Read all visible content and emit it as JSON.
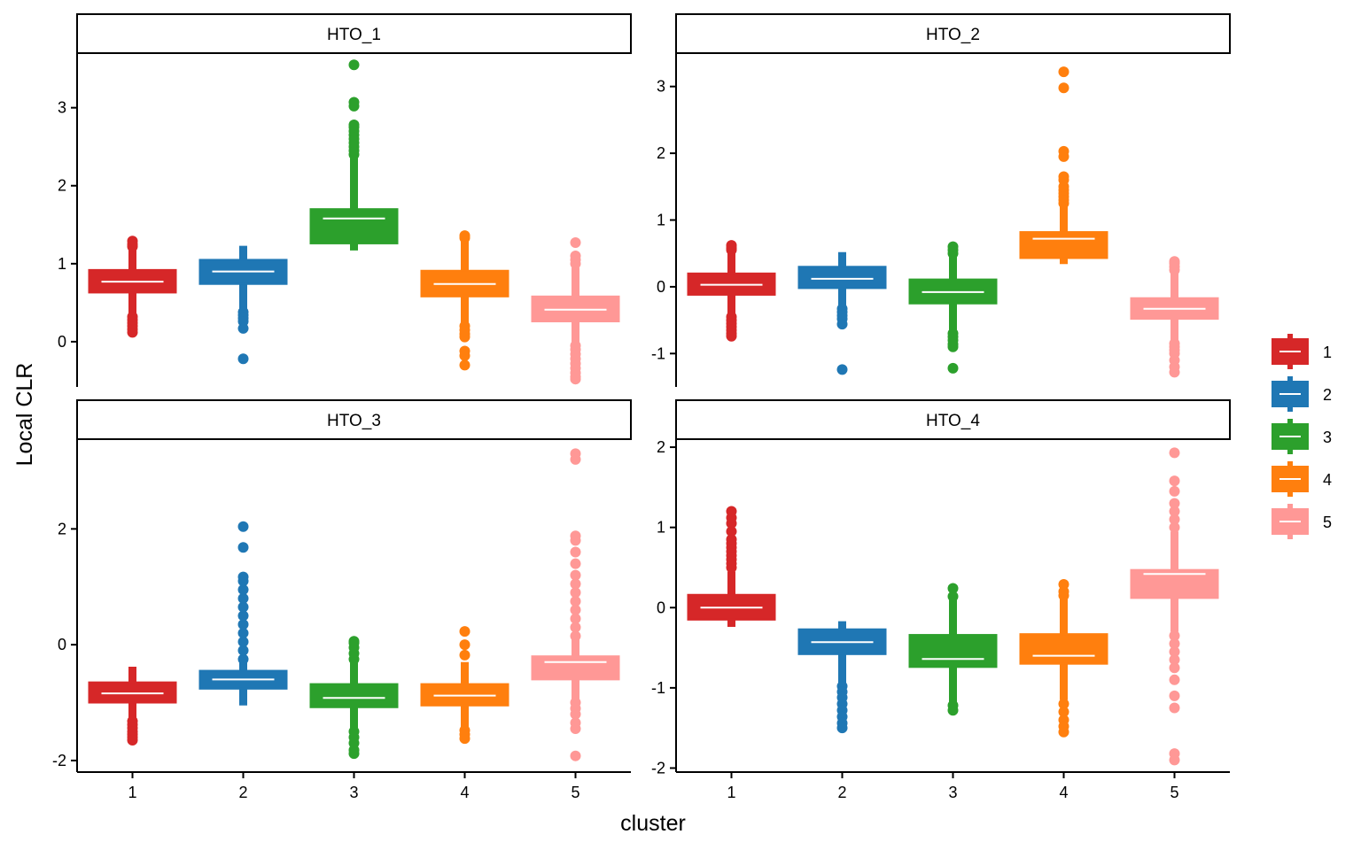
{
  "chart_data": {
    "type": "boxplot",
    "facet_layout": "2x2",
    "xlabel": "cluster",
    "ylabel": "Local CLR",
    "x_categories": [
      "1",
      "2",
      "3",
      "4",
      "5"
    ],
    "palette": {
      "1": "#D62728",
      "2": "#1F77B4",
      "3": "#2CA02C",
      "4": "#FF7F0E",
      "5": "#FF9896"
    },
    "median_color": "#FFFFFF",
    "legend": {
      "position": "right",
      "entries": [
        "1",
        "2",
        "3",
        "4",
        "5"
      ]
    },
    "facets": [
      {
        "name": "HTO_1",
        "ylim": [
          -0.58,
          3.7
        ],
        "yticks": [
          0,
          1,
          2,
          3
        ],
        "ytick_labels": [
          "0",
          "1",
          "2",
          "3"
        ],
        "boxes": [
          {
            "cluster": "1",
            "q1": 0.63,
            "median": 0.77,
            "q3": 0.92,
            "whisker_low": 0.35,
            "whisker_high": 1.27,
            "outliers": [
              0.12,
              0.16,
              0.2,
              0.24,
              0.28,
              0.32,
              1.29,
              1.25,
              1.22
            ]
          },
          {
            "cluster": "2",
            "q1": 0.74,
            "median": 0.9,
            "q3": 1.05,
            "whisker_low": 0.42,
            "whisker_high": 1.23,
            "outliers": [
              0.38,
              0.34,
              0.3,
              0.26,
              0.17,
              -0.22
            ]
          },
          {
            "cluster": "3",
            "q1": 1.26,
            "median": 1.58,
            "q3": 1.7,
            "whisker_low": 1.17,
            "whisker_high": 2.38,
            "outliers": [
              2.4,
              2.45,
              2.5,
              2.55,
              2.6,
              2.65,
              2.7,
              2.75,
              2.78,
              3.02,
              3.07,
              3.55
            ]
          },
          {
            "cluster": "4",
            "q1": 0.58,
            "median": 0.74,
            "q3": 0.91,
            "whisker_low": 0.22,
            "whisker_high": 1.3,
            "outliers": [
              0.2,
              0.15,
              0.1,
              0.06,
              -0.12,
              -0.18,
              -0.3,
              1.33,
              1.36
            ]
          },
          {
            "cluster": "5",
            "q1": 0.26,
            "median": 0.41,
            "q3": 0.58,
            "whisker_low": -0.02,
            "whisker_high": 0.95,
            "outliers": [
              -0.05,
              -0.1,
              -0.16,
              -0.22,
              -0.28,
              -0.34,
              -0.4,
              -0.45,
              -0.48,
              1.0,
              1.05,
              1.1,
              1.27
            ]
          }
        ]
      },
      {
        "name": "HTO_2",
        "ylim": [
          -1.5,
          3.5
        ],
        "yticks": [
          -1,
          0,
          1,
          2,
          3
        ],
        "ytick_labels": [
          "-1",
          "0",
          "1",
          "2",
          "3"
        ],
        "boxes": [
          {
            "cluster": "1",
            "q1": -0.12,
            "median": 0.03,
            "q3": 0.2,
            "whisker_low": -0.42,
            "whisker_high": 0.52,
            "outliers": [
              -0.45,
              -0.5,
              -0.55,
              -0.6,
              -0.65,
              -0.7,
              -0.74,
              0.55,
              0.58,
              0.62
            ]
          },
          {
            "cluster": "2",
            "q1": -0.02,
            "median": 0.12,
            "q3": 0.3,
            "whisker_low": -0.3,
            "whisker_high": 0.52,
            "outliers": [
              -0.33,
              -0.38,
              -0.43,
              -0.48,
              -0.56,
              -1.24
            ]
          },
          {
            "cluster": "3",
            "q1": -0.25,
            "median": -0.08,
            "q3": 0.11,
            "whisker_low": -0.65,
            "whisker_high": 0.45,
            "outliers": [
              -0.7,
              -0.75,
              -0.8,
              -0.86,
              -0.9,
              -1.22,
              0.5,
              0.55,
              0.6
            ]
          },
          {
            "cluster": "4",
            "q1": 0.43,
            "median": 0.72,
            "q3": 0.82,
            "whisker_low": 0.34,
            "whisker_high": 1.2,
            "outliers": [
              1.25,
              1.3,
              1.35,
              1.4,
              1.45,
              1.5,
              1.6,
              1.65,
              1.95,
              2.03,
              2.98,
              3.22
            ]
          },
          {
            "cluster": "5",
            "q1": -0.48,
            "median": -0.33,
            "q3": -0.17,
            "whisker_low": -0.82,
            "whisker_high": 0.2,
            "outliers": [
              -0.85,
              -0.9,
              -0.95,
              -1.0,
              -1.1,
              -1.2,
              -1.28,
              0.25,
              0.3,
              0.35,
              0.38
            ]
          }
        ]
      },
      {
        "name": "HTO_3",
        "ylim": [
          -2.2,
          3.55
        ],
        "yticks": [
          -2,
          0,
          2
        ],
        "ytick_labels": [
          "-2",
          "0",
          "2"
        ],
        "boxes": [
          {
            "cluster": "1",
            "q1": -1.0,
            "median": -0.84,
            "q3": -0.65,
            "whisker_low": -1.28,
            "whisker_high": -0.38,
            "outliers": [
              -1.32,
              -1.38,
              -1.44,
              -1.5,
              -1.55,
              -1.6,
              -1.65
            ]
          },
          {
            "cluster": "2",
            "q1": -0.76,
            "median": -0.6,
            "q3": -0.45,
            "whisker_low": -1.05,
            "whisker_high": -0.3,
            "outliers": [
              -0.25,
              -0.1,
              0.05,
              0.2,
              0.35,
              0.5,
              0.65,
              0.8,
              0.95,
              1.1,
              1.17,
              1.68,
              2.04
            ]
          },
          {
            "cluster": "3",
            "q1": -1.08,
            "median": -0.92,
            "q3": -0.68,
            "whisker_low": -1.45,
            "whisker_high": -0.3,
            "outliers": [
              -1.5,
              -1.6,
              -1.7,
              -1.82,
              -1.88,
              -0.25,
              -0.15,
              -0.05,
              0.03,
              0.06
            ]
          },
          {
            "cluster": "4",
            "q1": -1.05,
            "median": -0.88,
            "q3": -0.68,
            "whisker_low": -1.42,
            "whisker_high": -0.3,
            "outliers": [
              -1.48,
              -1.55,
              -1.62,
              -0.18,
              0.0,
              0.23
            ]
          },
          {
            "cluster": "5",
            "q1": -0.6,
            "median": -0.3,
            "q3": -0.2,
            "whisker_low": -0.98,
            "whisker_high": 0.1,
            "outliers": [
              -1.0,
              -1.1,
              -1.2,
              -1.35,
              -1.45,
              -1.92,
              0.15,
              0.3,
              0.45,
              0.6,
              0.75,
              0.9,
              1.05,
              1.2,
              1.4,
              1.6,
              1.8,
              1.88,
              3.2,
              3.3
            ]
          }
        ]
      },
      {
        "name": "HTO_4",
        "ylim": [
          -2.05,
          2.1
        ],
        "yticks": [
          -2,
          -1,
          0,
          1,
          2
        ],
        "ytick_labels": [
          "-2",
          "-1",
          "0",
          "1",
          "2"
        ],
        "boxes": [
          {
            "cluster": "1",
            "q1": -0.15,
            "median": 0.0,
            "q3": 0.16,
            "whisker_low": -0.24,
            "whisker_high": 0.45,
            "outliers": [
              0.5,
              0.55,
              0.6,
              0.65,
              0.7,
              0.75,
              0.8,
              0.85,
              0.95,
              1.05,
              1.12,
              1.2
            ]
          },
          {
            "cluster": "2",
            "q1": -0.58,
            "median": -0.43,
            "q3": -0.27,
            "whisker_low": -0.95,
            "whisker_high": -0.17,
            "outliers": [
              -0.98,
              -1.05,
              -1.12,
              -1.2,
              -1.28,
              -1.36,
              -1.44,
              -1.5
            ]
          },
          {
            "cluster": "3",
            "q1": -0.74,
            "median": -0.64,
            "q3": -0.34,
            "whisker_low": -1.18,
            "whisker_high": 0.1,
            "outliers": [
              -1.22,
              -1.28,
              0.14,
              0.24
            ]
          },
          {
            "cluster": "4",
            "q1": -0.7,
            "median": -0.6,
            "q3": -0.33,
            "whisker_low": -1.15,
            "whisker_high": 0.12,
            "outliers": [
              -1.2,
              -1.3,
              -1.4,
              -1.48,
              -1.55,
              0.15,
              0.2,
              0.29
            ]
          },
          {
            "cluster": "5",
            "q1": 0.12,
            "median": 0.42,
            "q3": 0.47,
            "whisker_low": -0.3,
            "whisker_high": 0.95,
            "outliers": [
              -0.35,
              -0.45,
              -0.55,
              -0.65,
              -0.75,
              -0.9,
              -1.1,
              -1.25,
              -1.82,
              -1.9,
              1.0,
              1.1,
              1.2,
              1.3,
              1.45,
              1.58,
              1.93
            ]
          }
        ]
      }
    ]
  }
}
